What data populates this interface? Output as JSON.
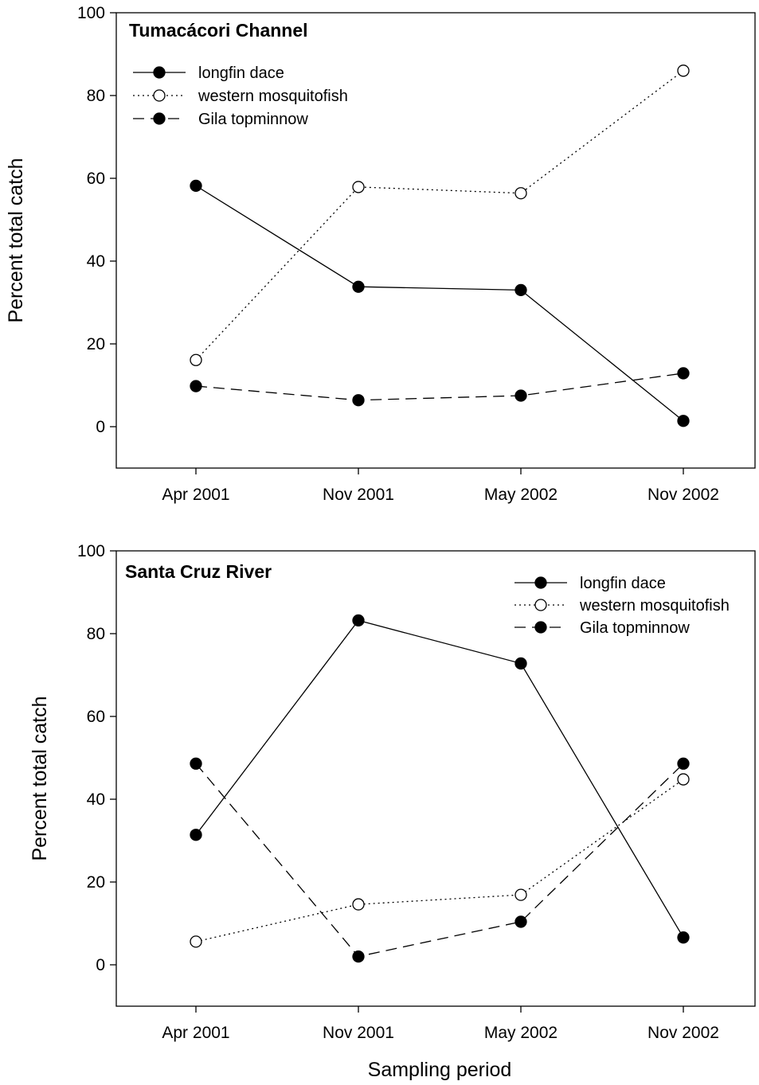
{
  "xlabel": "Sampling period",
  "chart_data": [
    {
      "type": "line",
      "title": "Tumacácori Channel",
      "xlabel": "",
      "ylabel": "Percent total catch",
      "categories": [
        "Apr 2001",
        "Nov 2001",
        "May 2002",
        "Nov 2002"
      ],
      "ylim": [
        -10,
        100
      ],
      "yticks": [
        0,
        20,
        40,
        60,
        80,
        100
      ],
      "grid": false,
      "legend_position": "top-left",
      "series": [
        {
          "name": "longfin dace",
          "values": [
            58.2,
            33.8,
            33.0,
            1.4
          ],
          "line_style": "solid",
          "marker": "filled-circle"
        },
        {
          "name": "western mosquitofish",
          "values": [
            16.1,
            57.9,
            56.4,
            86.0
          ],
          "line_style": "dotted",
          "marker": "open-circle"
        },
        {
          "name": "Gila topminnow",
          "values": [
            9.8,
            6.4,
            7.5,
            12.9
          ],
          "line_style": "dashed",
          "marker": "filled-circle"
        }
      ]
    },
    {
      "type": "line",
      "title": "Santa Cruz River",
      "xlabel": "Sampling period",
      "ylabel": "Percent total catch",
      "categories": [
        "Apr 2001",
        "Nov 2001",
        "May 2002",
        "Nov 2002"
      ],
      "ylim": [
        -10,
        100
      ],
      "yticks": [
        0,
        20,
        40,
        60,
        80,
        100
      ],
      "grid": false,
      "legend_position": "top-right",
      "series": [
        {
          "name": "longfin dace",
          "values": [
            31.4,
            83.2,
            72.8,
            6.6
          ],
          "line_style": "solid",
          "marker": "filled-circle"
        },
        {
          "name": "western mosquitofish",
          "values": [
            5.6,
            14.6,
            16.9,
            44.8
          ],
          "line_style": "dotted",
          "marker": "open-circle"
        },
        {
          "name": "Gila topminnow",
          "values": [
            48.6,
            2.0,
            10.4,
            48.6
          ],
          "line_style": "dashed",
          "marker": "filled-circle"
        }
      ]
    }
  ]
}
